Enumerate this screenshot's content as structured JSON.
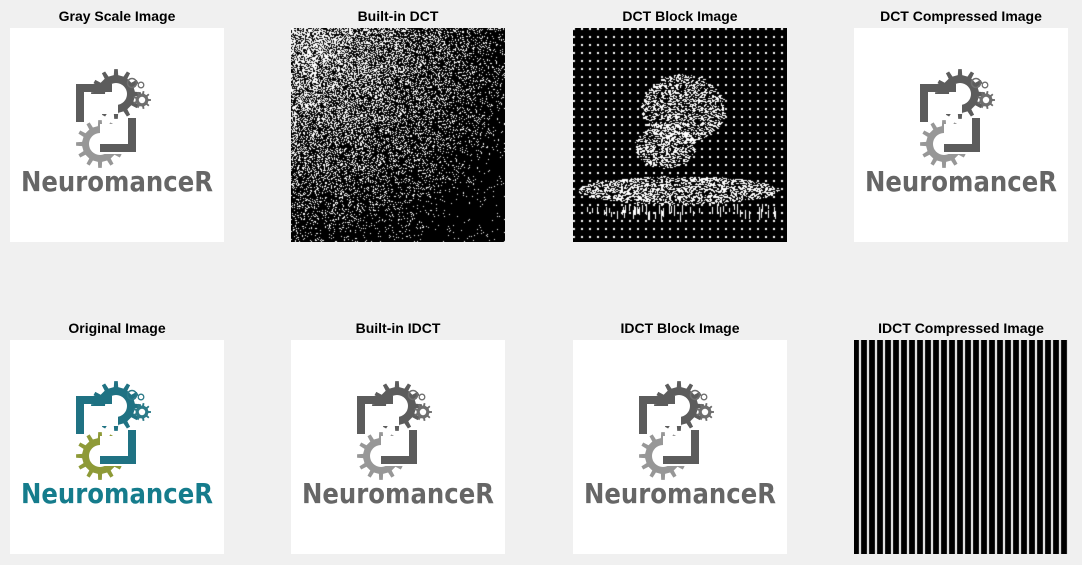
{
  "figure": {
    "panels": [
      {
        "id": "gray",
        "title": "Gray Scale Image",
        "kind": "logo",
        "logo_text": "NeuromanceR",
        "colors": {
          "top_gear": "#5c5c5c",
          "bottom_gear": "#979797",
          "small_gear": "#6e6e6e",
          "text": "#666666"
        }
      },
      {
        "id": "dct",
        "title": "Built-in DCT",
        "kind": "dct_noise"
      },
      {
        "id": "dct_block",
        "title": "DCT Block Image",
        "kind": "dct_block"
      },
      {
        "id": "dct_comp",
        "title": "DCT Compressed Image",
        "kind": "logo",
        "logo_text": "NeuromanceR",
        "colors": {
          "top_gear": "#5c5c5c",
          "bottom_gear": "#979797",
          "small_gear": "#6e6e6e",
          "text": "#666666"
        }
      },
      {
        "id": "orig",
        "title": "Original Image",
        "kind": "logo",
        "logo_text": "NeuromanceR",
        "colors": {
          "top_gear": "#1f7283",
          "bottom_gear": "#8e9a37",
          "small_gear": "#2b7a88",
          "text": "#157c8c"
        }
      },
      {
        "id": "idct",
        "title": "Built-in IDCT",
        "kind": "logo",
        "logo_text": "NeuromanceR",
        "colors": {
          "top_gear": "#5c5c5c",
          "bottom_gear": "#979797",
          "small_gear": "#6e6e6e",
          "text": "#666666"
        }
      },
      {
        "id": "idct_block",
        "title": "IDCT Block Image",
        "kind": "logo",
        "logo_text": "NeuromanceR",
        "colors": {
          "top_gear": "#5c5c5c",
          "bottom_gear": "#979797",
          "small_gear": "#6e6e6e",
          "text": "#666666"
        }
      },
      {
        "id": "idct_comp",
        "title": "IDCT Compressed Image",
        "kind": "stripes"
      }
    ]
  }
}
